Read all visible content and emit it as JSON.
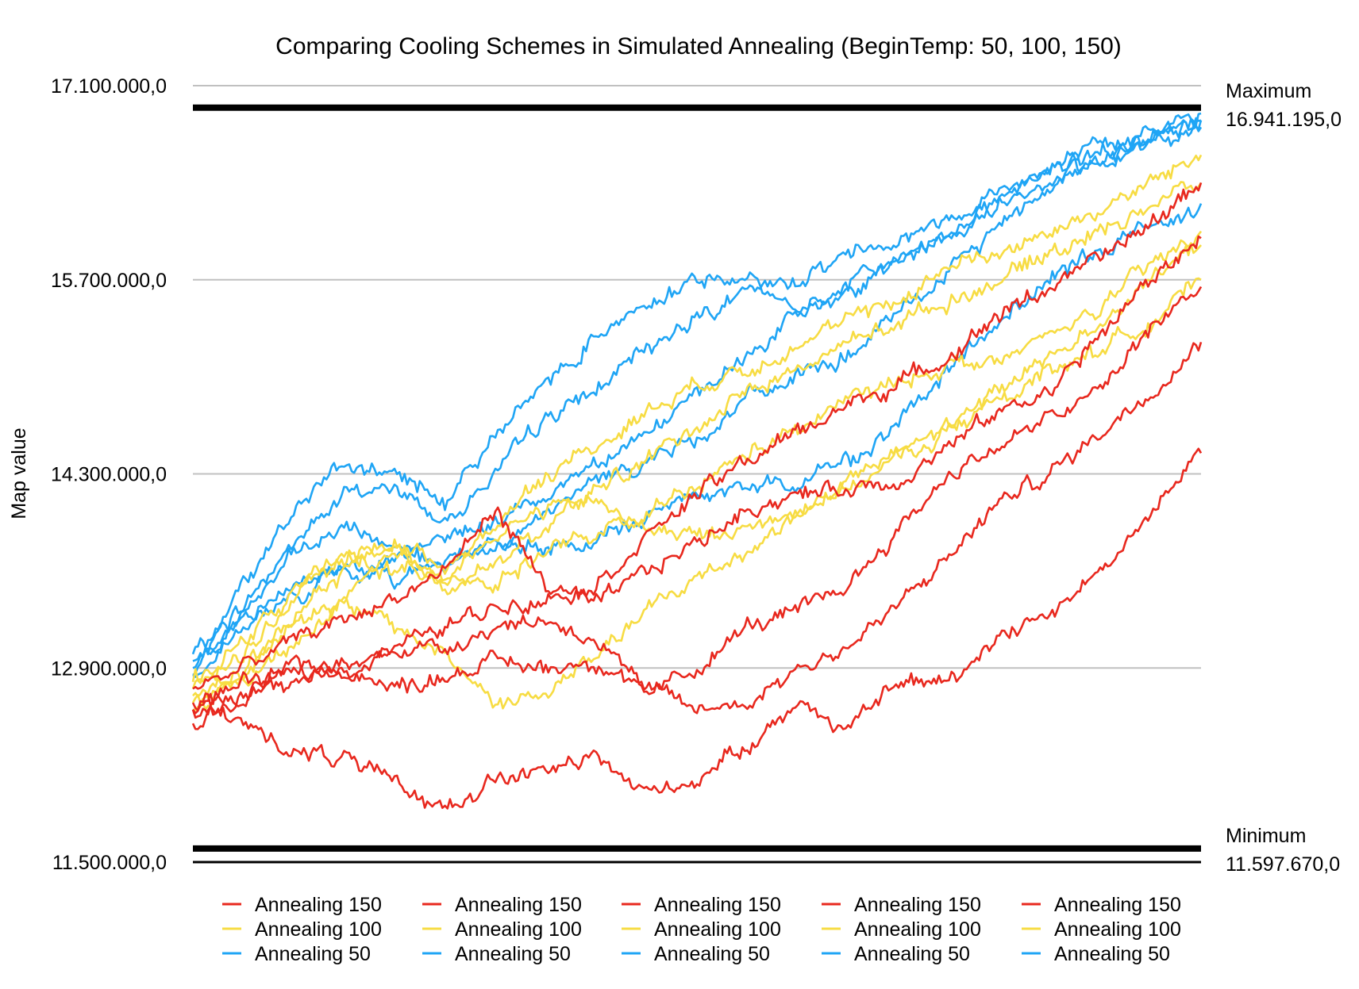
{
  "chart_data": {
    "type": "line",
    "title": "Comparing Cooling Schemes in Simulated Annealing  (BeginTemp: 50, 100, 150)",
    "xlabel": "",
    "ylabel": "Map value",
    "ylim": [
      11500000,
      17100000
    ],
    "yticks": [
      {
        "value": 17100000,
        "label": "17.100.000,0"
      },
      {
        "value": 15700000,
        "label": "15.700.000,0"
      },
      {
        "value": 14300000,
        "label": "14.300.000,0"
      },
      {
        "value": 12900000,
        "label": "12.900.000,0"
      },
      {
        "value": 11500000,
        "label": "11.500.000,0"
      }
    ],
    "grid": true,
    "x_ticks_shown": false,
    "reference_lines": [
      {
        "name": "Maximum",
        "value": 16941195,
        "label": "16.941.195,0"
      },
      {
        "name": "Minimum",
        "value": 11597670,
        "label": "11.597.670,0"
      }
    ],
    "colors": {
      "Annealing 150": "#e8281e",
      "Annealing 100": "#f7dc43",
      "Annealing 50": "#1fa5f5",
      "reference": "#000000",
      "grid": "#c0c0c0"
    },
    "legend_position": "bottom",
    "legend": [
      "Annealing 150",
      "Annealing 150",
      "Annealing 150",
      "Annealing 150",
      "Annealing 150",
      "Annealing 100",
      "Annealing 100",
      "Annealing 100",
      "Annealing 100",
      "Annealing 100",
      "Annealing 50",
      "Annealing 50",
      "Annealing 50",
      "Annealing 50",
      "Annealing 50"
    ],
    "x": [
      0,
      5,
      10,
      15,
      20,
      25,
      30,
      35,
      40,
      45,
      50,
      55,
      60,
      65,
      70,
      75,
      80,
      85,
      90,
      95,
      100
    ],
    "series": [
      {
        "name": "Annealing 150",
        "values": [
          12600000,
          12500000,
          12300000,
          12250000,
          12050000,
          11900000,
          12100000,
          12150000,
          12250000,
          12000000,
          12100000,
          12350000,
          12650000,
          12450000,
          12800000,
          12800000,
          13150000,
          13300000,
          13600000,
          14000000,
          14450000
        ]
      },
      {
        "name": "Annealing 150",
        "values": [
          12650000,
          12700000,
          12800000,
          12900000,
          12750000,
          12850000,
          12950000,
          12900000,
          12950000,
          12750000,
          12600000,
          12650000,
          12900000,
          13050000,
          13350000,
          13700000,
          14100000,
          14300000,
          14600000,
          14900000,
          15250000
        ]
      },
      {
        "name": "Annealing 150",
        "values": [
          12500000,
          12700000,
          12950000,
          12800000,
          13050000,
          13050000,
          13200000,
          13250000,
          13100000,
          12700000,
          12900000,
          13200000,
          13300000,
          13500000,
          13900000,
          14300000,
          14500000,
          14700000,
          14900000,
          15350000,
          15650000
        ]
      },
      {
        "name": "Annealing 150",
        "values": [
          12750000,
          12900000,
          13100000,
          13250000,
          13400000,
          13600000,
          14050000,
          13500000,
          13350000,
          13600000,
          13800000,
          14050000,
          14150000,
          14200000,
          14250000,
          14500000,
          14750000,
          14900000,
          15300000,
          15700000,
          16000000
        ]
      },
      {
        "name": "Annealing 150",
        "values": [
          12600000,
          12800000,
          12850000,
          12950000,
          13050000,
          13200000,
          13350000,
          13400000,
          13500000,
          13850000,
          14150000,
          14400000,
          14600000,
          14800000,
          14950000,
          15150000,
          15450000,
          15650000,
          15850000,
          16100000,
          16400000
        ]
      },
      {
        "name": "Annealing 100",
        "values": [
          12700000,
          12800000,
          13100000,
          13350000,
          13200000,
          13000000,
          12650000,
          12700000,
          13000000,
          13300000,
          13550000,
          13750000,
          14000000,
          14250000,
          14450000,
          14650000,
          14850000,
          15050000,
          15200000,
          15400000,
          15700000
        ]
      },
      {
        "name": "Annealing 100",
        "values": [
          12800000,
          13100000,
          13450000,
          13700000,
          13600000,
          13600000,
          13500000,
          13750000,
          13850000,
          14000000,
          14200000,
          14450000,
          14600000,
          14850000,
          14950000,
          15100000,
          15100000,
          15300000,
          15500000,
          15800000,
          16050000
        ]
      },
      {
        "name": "Annealing 100",
        "values": [
          12650000,
          12900000,
          13200000,
          13400000,
          13700000,
          13500000,
          13650000,
          13900000,
          14200000,
          14400000,
          14650000,
          14900000,
          15050000,
          15250000,
          15400000,
          15550000,
          15700000,
          15900000,
          16050000,
          16250000,
          16400000
        ]
      },
      {
        "name": "Annealing 100",
        "values": [
          12750000,
          13000000,
          13400000,
          13700000,
          13800000,
          13500000,
          13950000,
          14300000,
          14500000,
          14750000,
          14950000,
          15050000,
          15250000,
          15400000,
          15550000,
          15800000,
          15900000,
          16050000,
          16200000,
          16400000,
          16600000
        ]
      },
      {
        "name": "Annealing 100",
        "values": [
          12600000,
          12850000,
          13250000,
          13600000,
          13800000,
          13650000,
          13850000,
          14050000,
          14100000,
          13900000,
          13850000,
          13900000,
          14050000,
          14200000,
          14400000,
          14600000,
          14900000,
          15150000,
          15400000,
          15700000,
          15950000
        ]
      },
      {
        "name": "Annealing 50",
        "values": [
          13000000,
          13350000,
          13800000,
          14150000,
          14200000,
          13950000,
          14300000,
          14700000,
          14900000,
          15200000,
          15450000,
          15600000,
          15700000,
          15900000,
          16000000,
          16150000,
          16350000,
          16500000,
          16650000,
          16750000,
          16850000
        ]
      },
      {
        "name": "Annealing 50",
        "values": [
          12850000,
          13200000,
          13500000,
          13650000,
          13650000,
          13850000,
          13950000,
          14150000,
          14400000,
          14600000,
          14850000,
          15150000,
          15450000,
          15650000,
          15850000,
          16050000,
          16300000,
          16500000,
          16600000,
          16750000,
          16900000
        ]
      },
      {
        "name": "Annealing 50",
        "values": [
          12900000,
          13300000,
          13700000,
          13900000,
          13800000,
          13600000,
          13750000,
          14000000,
          14250000,
          14400000,
          14550000,
          14850000,
          15000000,
          15150000,
          15450000,
          15750000,
          16100000,
          16400000,
          16550000,
          16700000,
          16850000
        ]
      },
      {
        "name": "Annealing 50",
        "values": [
          12950000,
          13250000,
          13400000,
          13600000,
          13550000,
          13700000,
          13800000,
          13750000,
          13800000,
          14000000,
          14150000,
          14200000,
          14250000,
          14400000,
          14650000,
          15050000,
          15400000,
          15700000,
          15900000,
          16100000,
          16250000
        ]
      },
      {
        "name": "Annealing 50",
        "values": [
          12850000,
          13500000,
          14050000,
          14350000,
          14300000,
          14100000,
          14600000,
          14950000,
          15300000,
          15550000,
          15700000,
          15700000,
          15500000,
          15600000,
          15850000,
          16000000,
          16250000,
          16400000,
          16550000,
          16700000,
          16800000
        ]
      }
    ]
  }
}
